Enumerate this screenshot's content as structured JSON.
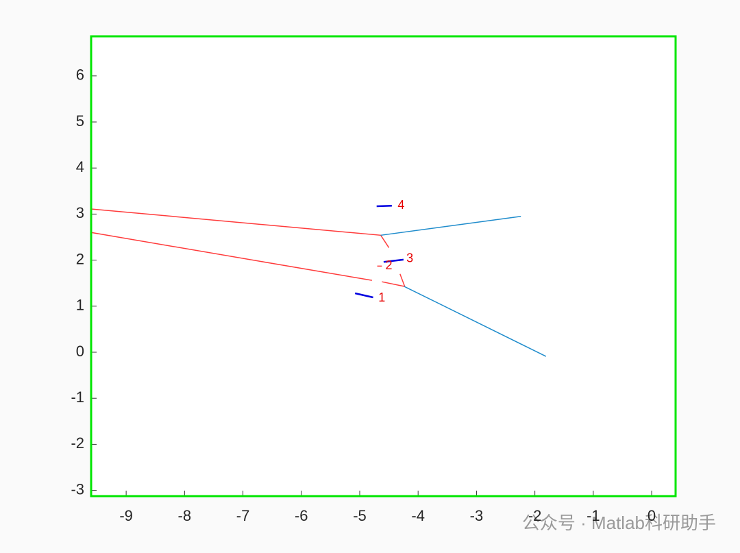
{
  "chart_data": {
    "type": "line",
    "xlim": [
      -9.6,
      0.41
    ],
    "ylim": [
      -3.125,
      6.86
    ],
    "xticks": [
      -9,
      -8,
      -7,
      -6,
      -5,
      -4,
      -3,
      -2,
      -1,
      0
    ],
    "yticks": [
      -3,
      -2,
      -1,
      0,
      1,
      2,
      3,
      4,
      5,
      6
    ],
    "axes_color": "#00e600",
    "series": [
      {
        "color": "#ff3b3b",
        "x": [
          -9.6,
          -4.64,
          -4.5
        ],
        "values": [
          3.11,
          2.54,
          2.27
        ]
      },
      {
        "color": "#ff3b3b",
        "x": [
          -4.31,
          -4.23
        ],
        "values": [
          1.7,
          1.43
        ]
      },
      {
        "color": "#ff3b3b",
        "x": [
          -9.6,
          -4.79
        ],
        "values": [
          2.6,
          1.56
        ]
      },
      {
        "color": "#ff3b3b",
        "x": [
          -4.62,
          -4.24
        ],
        "values": [
          1.53,
          1.43
        ]
      },
      {
        "color": "#1f8ccc",
        "x": [
          -4.64,
          -2.24
        ],
        "values": [
          2.54,
          2.95
        ]
      },
      {
        "color": "#1f8ccc",
        "x": [
          -4.24,
          -1.81
        ],
        "values": [
          1.43,
          -0.09
        ]
      },
      {
        "color": "#0000e0",
        "x": [
          -5.08,
          -4.77
        ],
        "values": [
          1.28,
          1.19
        ]
      },
      {
        "color": "#ff3b3b",
        "x": [
          -4.7,
          -4.62
        ],
        "values": [
          1.87,
          1.87
        ]
      },
      {
        "color": "#0000e0",
        "x": [
          -4.59,
          -4.25
        ],
        "values": [
          1.96,
          2.01
        ]
      },
      {
        "color": "#0000e0",
        "x": [
          -4.71,
          -4.45
        ],
        "values": [
          3.17,
          3.18
        ]
      }
    ],
    "annotations": [
      {
        "text": "1",
        "x": -4.68,
        "y": 1.17
      },
      {
        "text": "2",
        "x": -4.56,
        "y": 1.87
      },
      {
        "text": "3",
        "x": -4.2,
        "y": 2.03
      },
      {
        "text": "4",
        "x": -4.35,
        "y": 3.18
      }
    ],
    "annotation_color": "#e60000",
    "watermark": "公众号 · Matlab科研助手"
  }
}
